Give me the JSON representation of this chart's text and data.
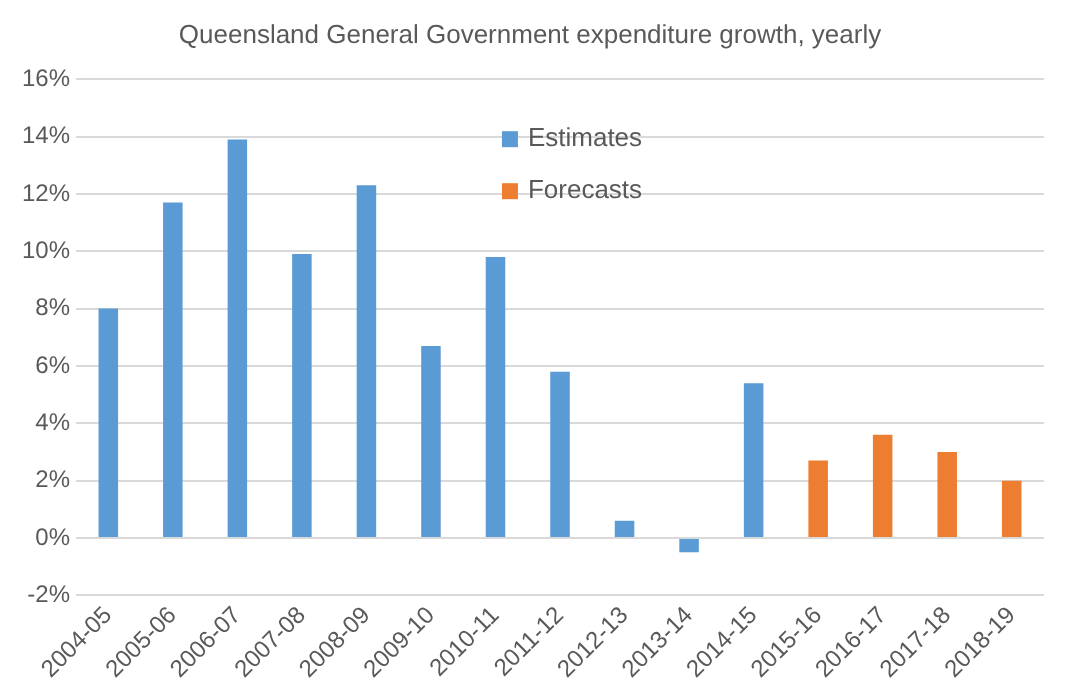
{
  "chart_data": {
    "type": "bar",
    "title": "Queensland General Government expenditure growth, yearly",
    "categories": [
      "2004-05",
      "2005-06",
      "2006-07",
      "2007-08",
      "2008-09",
      "2009-10",
      "2010-11",
      "2011-12",
      "2012-13",
      "2013-14",
      "2014-15",
      "2015-16",
      "2016-17",
      "2017-18",
      "2018-19"
    ],
    "series": [
      {
        "name": "Estimates",
        "color": "#5b9bd5",
        "values": [
          8.0,
          11.7,
          13.9,
          9.9,
          12.3,
          6.7,
          9.8,
          5.8,
          0.6,
          -0.5,
          5.4,
          null,
          null,
          null,
          null
        ]
      },
      {
        "name": "Forecasts",
        "color": "#ed7d31",
        "values": [
          null,
          null,
          null,
          null,
          null,
          null,
          null,
          null,
          null,
          null,
          null,
          2.7,
          3.6,
          3.0,
          2.0
        ]
      }
    ],
    "ylim": [
      -2,
      16
    ],
    "yticks": [
      {
        "value": -2,
        "label": "-2%"
      },
      {
        "value": 0,
        "label": "0%"
      },
      {
        "value": 2,
        "label": "2%"
      },
      {
        "value": 4,
        "label": "4%"
      },
      {
        "value": 6,
        "label": "6%"
      },
      {
        "value": 8,
        "label": "8%"
      },
      {
        "value": 10,
        "label": "10%"
      },
      {
        "value": 12,
        "label": "12%"
      },
      {
        "value": 14,
        "label": "14%"
      },
      {
        "value": 16,
        "label": "16%"
      }
    ],
    "grid": "y",
    "legend": "top right"
  }
}
